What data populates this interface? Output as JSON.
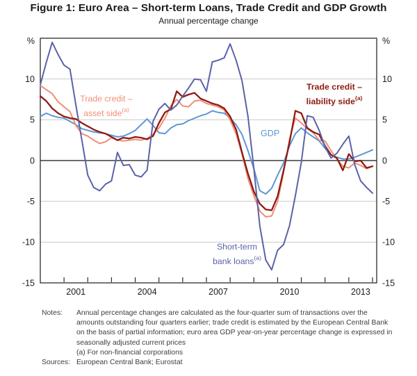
{
  "figure": {
    "title": "Figure 1: Euro Area – Short-term Loans, Trade Credit and GDP Growth",
    "subtitle": "Annual percentage change"
  },
  "chart_data": {
    "type": "line",
    "frequency": "quarterly",
    "x_start": "2000-Q1",
    "x_end": "2014-Q1",
    "ylim": [
      -15,
      15
    ],
    "y_unit_label": "%",
    "grid_values": [
      10,
      5,
      -5,
      -10
    ],
    "zero_line": 0,
    "yticks": [
      {
        "v": 10,
        "label": "10"
      },
      {
        "v": 5,
        "label": "5"
      },
      {
        "v": 0,
        "label": "0"
      },
      {
        "v": -5,
        "label": "-5"
      },
      {
        "v": -10,
        "label": "-10"
      },
      {
        "v": -15,
        "label": "-15"
      }
    ],
    "x_tick_years": [
      2001,
      2004,
      2007,
      2010,
      2013
    ],
    "legend_position": "inline-annotations",
    "grid": true,
    "series": [
      {
        "name": "GDP",
        "color": "#5e97d6",
        "width": 2,
        "values": [
          5.4,
          5.8,
          5.5,
          5.3,
          5.2,
          4.8,
          4.4,
          3.9,
          3.7,
          3.5,
          3.4,
          3.3,
          3.1,
          2.9,
          3.0,
          3.3,
          3.7,
          4.4,
          5.1,
          4.3,
          3.4,
          3.3,
          4.0,
          4.4,
          4.5,
          4.9,
          5.2,
          5.5,
          5.7,
          6.1,
          5.9,
          5.8,
          5.2,
          4.4,
          3.2,
          1.2,
          -1.0,
          -3.7,
          -4.1,
          -3.4,
          -1.8,
          -0.3,
          1.8,
          3.3,
          4.0,
          3.4,
          2.9,
          2.4,
          1.5,
          0.7,
          0.4,
          0.2,
          0.2,
          0.4,
          0.7,
          1.0,
          1.3
        ]
      },
      {
        "name": "Trade credit – asset side (a)",
        "color": "#ef8e76",
        "width": 2,
        "values": [
          9.2,
          8.7,
          8.2,
          7.2,
          6.6,
          6.0,
          4.3,
          3.3,
          3.0,
          2.5,
          2.1,
          2.3,
          2.8,
          2.5,
          2.4,
          2.5,
          2.6,
          2.5,
          2.7,
          3.2,
          4.0,
          5.2,
          6.7,
          7.5,
          6.7,
          6.6,
          7.3,
          7.4,
          7.0,
          6.8,
          6.6,
          6.2,
          5.0,
          3.3,
          0.8,
          -2.2,
          -4.3,
          -6.2,
          -6.9,
          -6.8,
          -5.0,
          -1.5,
          2.6,
          5.2,
          4.6,
          3.9,
          3.4,
          2.5,
          2.4,
          1.2,
          0.2,
          -0.7,
          -0.9,
          -0.3,
          -0.6,
          -1.0,
          -0.7
        ]
      },
      {
        "name": "Trade credit – liability side (a)",
        "color": "#8e1b12",
        "width": 2.3,
        "values": [
          7.9,
          7.3,
          6.4,
          5.8,
          5.4,
          5.2,
          5.1,
          4.6,
          4.2,
          3.8,
          3.5,
          3.3,
          2.9,
          2.5,
          2.8,
          2.7,
          2.9,
          2.8,
          2.6,
          3.0,
          4.6,
          5.9,
          6.3,
          8.5,
          7.8,
          8.1,
          8.3,
          7.6,
          7.3,
          7.0,
          6.8,
          6.4,
          5.4,
          3.8,
          1.0,
          -1.6,
          -3.8,
          -5.3,
          -6.0,
          -6.1,
          -4.4,
          -1.2,
          2.2,
          6.1,
          5.8,
          4.0,
          3.5,
          3.2,
          1.8,
          0.7,
          0.3,
          -1.2,
          0.8,
          -0.1,
          0.0,
          -0.9,
          -0.7
        ]
      },
      {
        "name": "Short-term bank loans (a)",
        "color": "#5a62a8",
        "width": 2,
        "values": [
          9.3,
          12.0,
          14.5,
          13.0,
          11.7,
          11.2,
          6.8,
          2.5,
          -1.8,
          -3.3,
          -3.7,
          -2.9,
          -2.5,
          1.0,
          -0.6,
          -0.5,
          -1.8,
          -2.0,
          -1.2,
          4.8,
          6.3,
          7.0,
          6.2,
          6.8,
          7.9,
          8.9,
          10.0,
          9.9,
          8.5,
          12.1,
          12.3,
          12.6,
          14.3,
          12.3,
          9.8,
          5.4,
          -1.0,
          -8.0,
          -12.2,
          -13.4,
          -11.0,
          -10.3,
          -8.0,
          -4.3,
          -0.2,
          5.5,
          5.3,
          3.7,
          1.7,
          0.3,
          0.9,
          2.0,
          3.0,
          -0.5,
          -2.5,
          -3.3,
          -4.0
        ]
      }
    ]
  },
  "labels": {
    "asset": {
      "line1": "Trade credit –",
      "line2": "asset side",
      "sup": "(a)"
    },
    "liability": {
      "line1": "Trade credit –",
      "line2": "liability side",
      "sup": "(a)"
    },
    "gdp": {
      "line1": "GDP"
    },
    "bank": {
      "line1": "Short-term",
      "line2": "bank loans",
      "sup": "(a)"
    }
  },
  "notes": {
    "notes_label": "Notes:",
    "lines": [
      "Annual percentage changes are calculated as the four-quarter sum of transactions over the",
      "amounts outstanding four quarters earlier; trade credit is estimated by the European Central Bank",
      "on the basis of partial information; euro area GDP year-on-year percentage change is expressed in",
      "seasonally adjusted current prices",
      "(a) For non-financial corporations"
    ],
    "sources_label": "Sources:",
    "sources_text": "European Central Bank; Eurostat"
  },
  "style": {
    "grid_color": "#c9c9c9",
    "zero_color": "#3a3a3a",
    "border_color": "#2b2b2b",
    "tick_text_color": "#1a1a1a"
  }
}
